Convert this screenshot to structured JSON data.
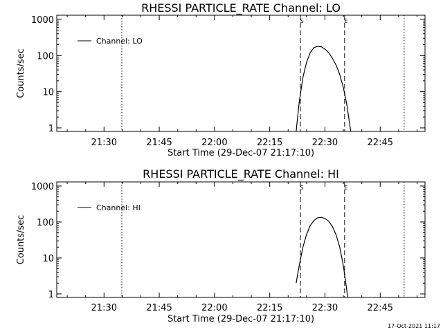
{
  "timestamp": "17-Oct-2021 11:17",
  "chart_data": [
    {
      "type": "line",
      "title": "RHESSI PARTICLE_RATE Channel: LO",
      "xlabel": "Start Time (29-Dec-07 21:17:10)",
      "ylabel": "Counts/sec",
      "y_scale": "log",
      "xlim": [
        "21:17:10",
        "22:57:10"
      ],
      "ylim": [
        0.8,
        1300
      ],
      "x_ticks": [
        "21:30",
        "21:45",
        "22:00",
        "22:15",
        "22:30",
        "22:45"
      ],
      "y_ticks": [
        "1",
        "10",
        "100",
        "1000"
      ],
      "legend": {
        "position": "top-left",
        "entries": [
          "Channel: LO"
        ]
      },
      "vlines": [
        {
          "time": "21:34:50",
          "style": "dotted"
        },
        {
          "time": "22:23:20",
          "style": "dashed",
          "label": "S"
        },
        {
          "time": "22:35:20",
          "style": "dashed",
          "label": "E"
        },
        {
          "time": "22:51:30",
          "style": "dotted"
        }
      ],
      "series": [
        {
          "name": "Channel: LO",
          "x": [
            "22:22:10",
            "22:23:00",
            "22:24:00",
            "22:25:00",
            "22:26:00",
            "22:27:00",
            "22:28:00",
            "22:29:00",
            "22:30:00",
            "22:31:00",
            "22:32:00",
            "22:33:00",
            "22:34:00",
            "22:35:00",
            "22:36:00",
            "22:37:00"
          ],
          "values": [
            0.8,
            5,
            25,
            65,
            120,
            165,
            180,
            175,
            150,
            120,
            85,
            55,
            30,
            13,
            4,
            0.8
          ]
        }
      ]
    },
    {
      "type": "line",
      "title": "RHESSI PARTICLE_RATE Channel: HI",
      "xlabel": "Start Time (29-Dec-07 21:17:10)",
      "ylabel": "Counts/sec",
      "y_scale": "log",
      "xlim": [
        "21:17:10",
        "22:57:10"
      ],
      "ylim": [
        0.8,
        1300
      ],
      "x_ticks": [
        "21:30",
        "21:45",
        "22:00",
        "22:15",
        "22:30",
        "22:45"
      ],
      "y_ticks": [
        "1",
        "10",
        "100",
        "1000"
      ],
      "legend": {
        "position": "top-left",
        "entries": [
          "Channel: HI"
        ]
      },
      "vlines": [
        {
          "time": "21:34:50",
          "style": "dotted"
        },
        {
          "time": "22:23:20",
          "style": "dashed",
          "label": "S"
        },
        {
          "time": "22:35:20",
          "style": "dashed",
          "label": "E"
        },
        {
          "time": "22:51:30",
          "style": "dotted"
        }
      ],
      "series": [
        {
          "name": "Channel: HI",
          "x": [
            "22:22:10",
            "22:23:00",
            "22:24:00",
            "22:25:00",
            "22:26:00",
            "22:27:00",
            "22:28:00",
            "22:29:00",
            "22:30:00",
            "22:31:00",
            "22:32:00",
            "22:33:00",
            "22:34:00",
            "22:35:00",
            "22:35:40",
            "22:36:10"
          ],
          "values": [
            2,
            6,
            20,
            45,
            80,
            110,
            130,
            135,
            125,
            105,
            75,
            45,
            20,
            6,
            2,
            0.8
          ]
        }
      ]
    }
  ]
}
